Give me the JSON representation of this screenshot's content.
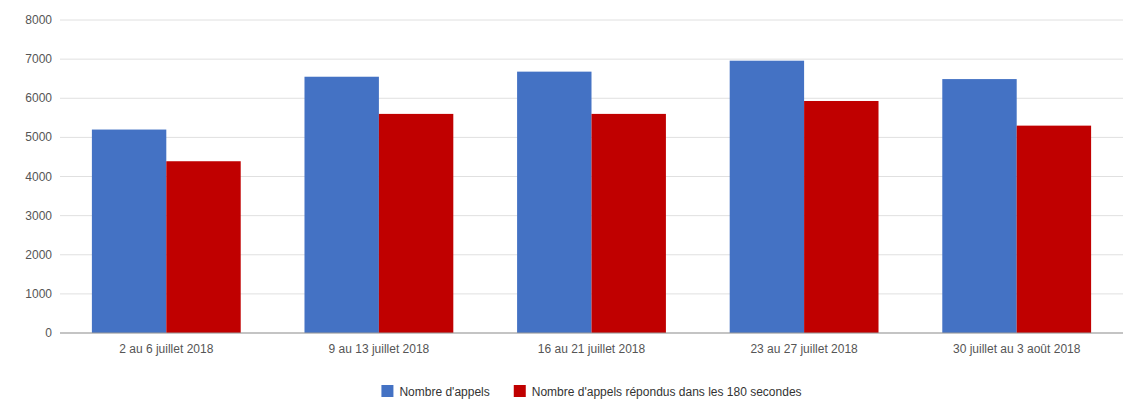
{
  "chart_data": {
    "type": "bar",
    "categories": [
      "2 au 6 juillet 2018",
      "9 au 13 juillet 2018",
      "16 au 21 juillet 2018",
      "23 au 27 juillet 2018",
      "30 juillet au 3 août 2018"
    ],
    "series": [
      {
        "name": "Nombre d'appels",
        "color": "#4472C4",
        "values": [
          5200,
          6550,
          6680,
          6960,
          6490
        ]
      },
      {
        "name": "Nombre d'appels répondus dans les 180 secondes",
        "color": "#C00000",
        "values": [
          4390,
          5600,
          5600,
          5930,
          5300
        ]
      }
    ],
    "ylim": [
      0,
      8000
    ],
    "yticks": [
      0,
      1000,
      2000,
      3000,
      4000,
      5000,
      6000,
      7000,
      8000
    ],
    "grid": true,
    "legend": "bottom"
  }
}
